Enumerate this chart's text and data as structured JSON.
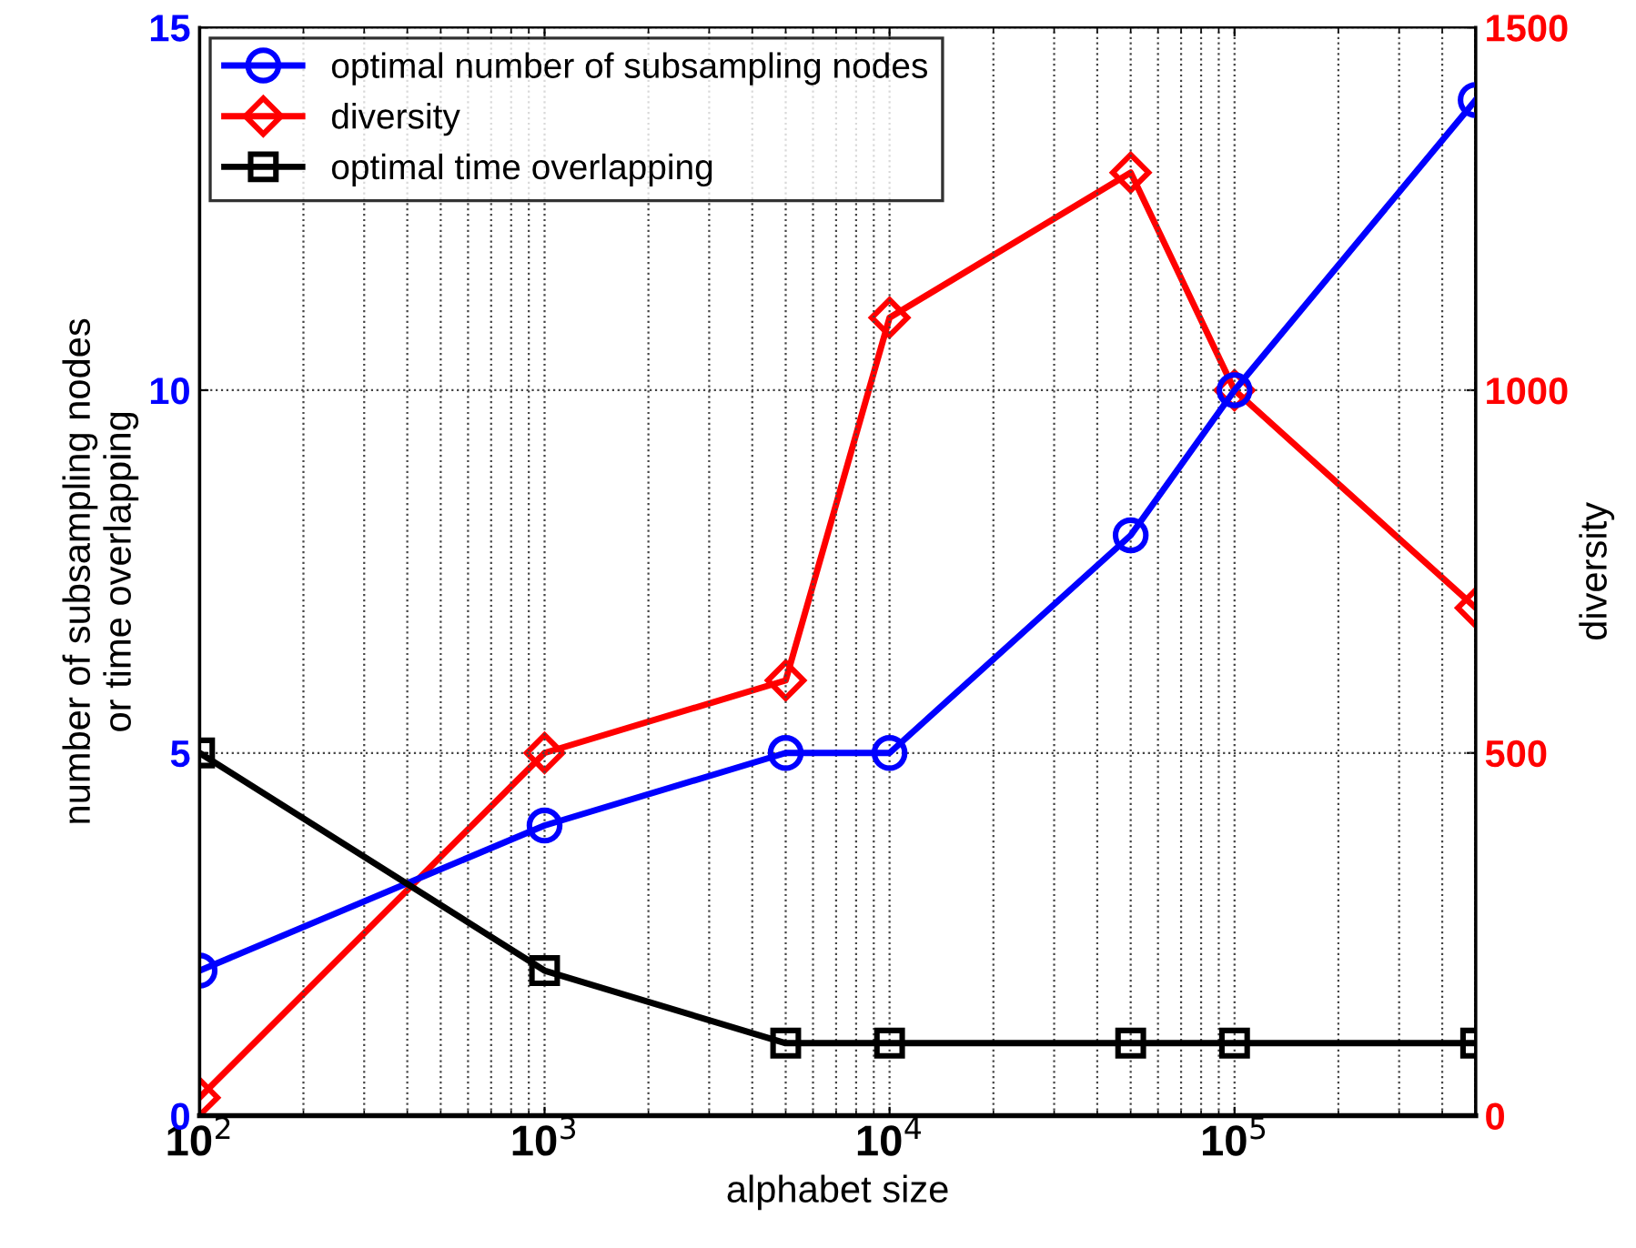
{
  "chart_data": {
    "type": "line",
    "xlabel": "alphabet size",
    "ylabel": "number of subsampling nodes\nor time overlapping",
    "y2label": "diversity",
    "x": [
      100,
      1000,
      5000,
      10000,
      50000,
      100000,
      500000
    ],
    "series": [
      {
        "name": "optimal number of subsampling nodes",
        "color": "#0000ff",
        "marker": "circle",
        "values": [
          2,
          4,
          5,
          5,
          8,
          10,
          14
        ]
      },
      {
        "name": "diversity",
        "color": "#ff0000",
        "marker": "diamond",
        "axis": "y2",
        "values": [
          25,
          500,
          600,
          1100,
          1300,
          1000,
          700
        ]
      },
      {
        "name": "optimal time overlapping",
        "color": "#000000",
        "marker": "square",
        "values": [
          5,
          2,
          1,
          1,
          1,
          1,
          1
        ]
      }
    ],
    "log": "x",
    "xlim": [
      100,
      500000
    ],
    "xticks": [
      {
        "value": 100,
        "label": "10$^{2}$"
      },
      {
        "value": 1000,
        "label": "10$^{3}$"
      },
      {
        "value": 10000,
        "label": "10$^{4}$"
      },
      {
        "value": 100000,
        "label": "10$^{5}$"
      }
    ],
    "ylim": [
      0,
      15
    ],
    "yticks": [
      0,
      5,
      10,
      15
    ],
    "y2lim": [
      0,
      1500
    ],
    "y2ticks": [
      0,
      500,
      1000,
      1500
    ],
    "grid": true,
    "legend": "top left",
    "line_style": "solid"
  }
}
